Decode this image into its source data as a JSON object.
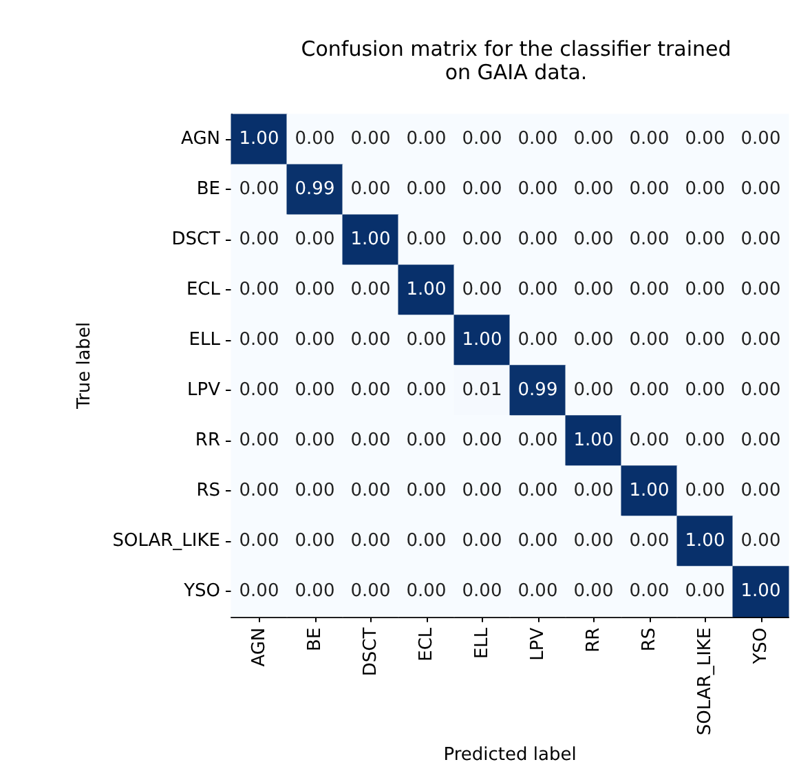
{
  "chart_data": {
    "type": "heatmap",
    "title": "Confusion matrix for the classifier trained\non GAIA data.",
    "xlabel": "Predicted label",
    "ylabel": "True label",
    "categories": [
      "AGN",
      "BE",
      "DSCT",
      "ECL",
      "ELL",
      "LPV",
      "RR",
      "RS",
      "SOLAR_LIKE",
      "YSO"
    ],
    "y_categories": [
      "AGN",
      "BE",
      "DSCT",
      "ECL",
      "ELL",
      "LPV",
      "RR",
      "RS",
      "SOLAR_LIKE",
      "YSO"
    ],
    "cells": [
      [
        1.0,
        0.0,
        0.0,
        0.0,
        0.0,
        0.0,
        0.0,
        0.0,
        0.0,
        0.0
      ],
      [
        0.0,
        0.99,
        0.0,
        0.0,
        0.0,
        0.0,
        0.0,
        0.0,
        0.0,
        0.0
      ],
      [
        0.0,
        0.0,
        1.0,
        0.0,
        0.0,
        0.0,
        0.0,
        0.0,
        0.0,
        0.0
      ],
      [
        0.0,
        0.0,
        0.0,
        1.0,
        0.0,
        0.0,
        0.0,
        0.0,
        0.0,
        0.0
      ],
      [
        0.0,
        0.0,
        0.0,
        0.0,
        1.0,
        0.0,
        0.0,
        0.0,
        0.0,
        0.0
      ],
      [
        0.0,
        0.0,
        0.0,
        0.0,
        0.01,
        0.99,
        0.0,
        0.0,
        0.0,
        0.0
      ],
      [
        0.0,
        0.0,
        0.0,
        0.0,
        0.0,
        0.0,
        1.0,
        0.0,
        0.0,
        0.0
      ],
      [
        0.0,
        0.0,
        0.0,
        0.0,
        0.0,
        0.0,
        0.0,
        1.0,
        0.0,
        0.0
      ],
      [
        0.0,
        0.0,
        0.0,
        0.0,
        0.0,
        0.0,
        0.0,
        0.0,
        1.0,
        0.0
      ],
      [
        0.0,
        0.0,
        0.0,
        0.0,
        0.0,
        0.0,
        0.0,
        0.0,
        0.0,
        1.0
      ]
    ],
    "cell_labels": [
      [
        "1.00",
        "0.00",
        "0.00",
        "0.00",
        "0.00",
        "0.00",
        "0.00",
        "0.00",
        "0.00",
        "0.00"
      ],
      [
        "0.00",
        "0.99",
        "0.00",
        "0.00",
        "0.00",
        "0.00",
        "0.00",
        "0.00",
        "0.00",
        "0.00"
      ],
      [
        "0.00",
        "0.00",
        "1.00",
        "0.00",
        "0.00",
        "0.00",
        "0.00",
        "0.00",
        "0.00",
        "0.00"
      ],
      [
        "0.00",
        "0.00",
        "0.00",
        "1.00",
        "0.00",
        "0.00",
        "0.00",
        "0.00",
        "0.00",
        "0.00"
      ],
      [
        "0.00",
        "0.00",
        "0.00",
        "0.00",
        "1.00",
        "0.00",
        "0.00",
        "0.00",
        "0.00",
        "0.00"
      ],
      [
        "0.00",
        "0.00",
        "0.00",
        "0.00",
        "0.01",
        "0.99",
        "0.00",
        "0.00",
        "0.00",
        "0.00"
      ],
      [
        "0.00",
        "0.00",
        "0.00",
        "0.00",
        "0.00",
        "0.00",
        "1.00",
        "0.00",
        "0.00",
        "0.00"
      ],
      [
        "0.00",
        "0.00",
        "0.00",
        "0.00",
        "0.00",
        "0.00",
        "0.00",
        "1.00",
        "0.00",
        "0.00"
      ],
      [
        "0.00",
        "0.00",
        "0.00",
        "0.00",
        "0.00",
        "0.00",
        "0.00",
        "0.00",
        "1.00",
        "0.00"
      ],
      [
        "0.00",
        "0.00",
        "0.00",
        "0.00",
        "0.00",
        "0.00",
        "0.00",
        "0.00",
        "0.00",
        "1.00"
      ]
    ]
  }
}
